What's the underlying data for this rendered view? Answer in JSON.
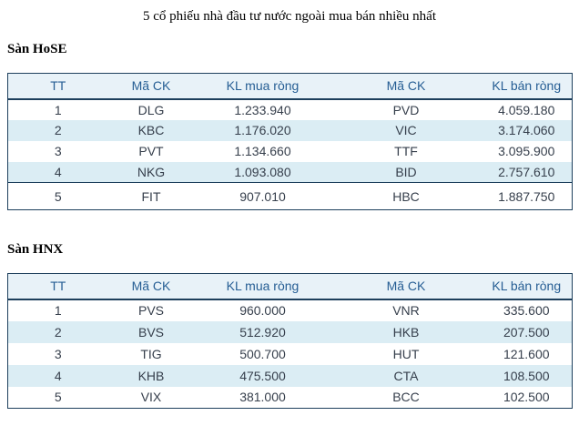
{
  "page": {
    "title": "5 cổ phiếu nhà đầu tư nước ngoài mua bán nhiều nhất"
  },
  "colors": {
    "header_bg": "#e8f2f8",
    "stripe_bg": "#dbedf4",
    "border": "#1d3f5c",
    "header_text": "#265e94",
    "data_text": "#363f4c"
  },
  "tables": [
    {
      "section_label": "Sàn HoSE",
      "columns": [
        "TT",
        "Mã CK",
        "KL mua ròng",
        "Mã CK",
        "KL bán ròng"
      ],
      "rows": [
        [
          "1",
          "DLG",
          "1.233.940",
          "PVD",
          "4.059.180"
        ],
        [
          "2",
          "KBC",
          "1.176.020",
          "VIC",
          "3.174.060"
        ],
        [
          "3",
          "PVT",
          "1.134.660",
          "TTF",
          "3.095.900"
        ],
        [
          "4",
          "NKG",
          "1.093.080",
          "BID",
          "2.757.610"
        ],
        [
          "5",
          "FIT",
          "907.010",
          "HBC",
          "1.887.750"
        ]
      ]
    },
    {
      "section_label": "Sàn HNX",
      "columns": [
        "TT",
        "Mã CK",
        "KL mua ròng",
        "Mã CK",
        "KL bán ròng"
      ],
      "rows": [
        [
          "1",
          "PVS",
          "960.000",
          "VNR",
          "335.600"
        ],
        [
          "2",
          "BVS",
          "512.920",
          "HKB",
          "207.500"
        ],
        [
          "3",
          "TIG",
          "500.700",
          "HUT",
          "121.600"
        ],
        [
          "4",
          "KHB",
          "475.500",
          "CTA",
          "108.500"
        ],
        [
          "5",
          "VIX",
          "381.000",
          "BCC",
          "102.500"
        ]
      ]
    }
  ]
}
